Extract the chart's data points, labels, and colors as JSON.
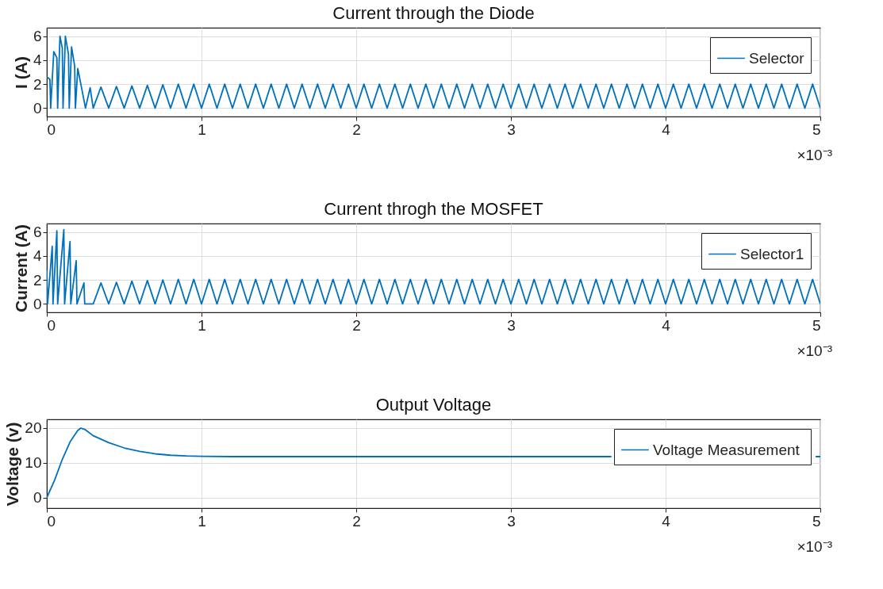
{
  "chart_data": [
    {
      "type": "line",
      "title": "Current through the Diode",
      "ylabel": "I (A)",
      "xlim": [
        0,
        5
      ],
      "xticks": [
        0,
        1,
        2,
        3,
        4,
        5
      ],
      "ylim": [
        -0.7,
        6.7
      ],
      "yticks": [
        0,
        2,
        4,
        6
      ],
      "grid": true,
      "legend": "top right",
      "annotations": [
        "×10⁻³"
      ],
      "series": [
        {
          "name": "Selector",
          "color": "#0072bd",
          "x": [
            0,
            0.02,
            0.025,
            0.045,
            0.065,
            0.07,
            0.085,
            0.1,
            0.105,
            0.12,
            0.14,
            0.145,
            0.16,
            0.18,
            0.185,
            0.2,
            0.22,
            0.25,
            0.28,
            0.3,
            0.35,
            0.4,
            0.45,
            0.5,
            0.55,
            0.6,
            0.65,
            0.7,
            0.75,
            0.8,
            0.85,
            0.9,
            0.95,
            1.0,
            1.05,
            1.1,
            1.15,
            1.2,
            1.25,
            1.3,
            1.35,
            1.4,
            1.45,
            1.5,
            1.55,
            1.6,
            1.65,
            1.7,
            1.75,
            1.8,
            1.85,
            1.9,
            1.95,
            2.0,
            2.05,
            2.1,
            2.15,
            2.2,
            2.25,
            2.3,
            2.35,
            2.4,
            2.45,
            2.5,
            2.55,
            2.6,
            2.65,
            2.7,
            2.75,
            2.8,
            2.85,
            2.9,
            2.95,
            3.0,
            3.05,
            3.1,
            3.15,
            3.2,
            3.25,
            3.3,
            3.35,
            3.4,
            3.45,
            3.5,
            3.55,
            3.6,
            3.65,
            3.7,
            3.75,
            3.8,
            3.85,
            3.9,
            3.95,
            4.0,
            4.05,
            4.1,
            4.15,
            4.2,
            4.25,
            4.3,
            4.35,
            4.4,
            4.45,
            4.5,
            4.55,
            4.6,
            4.65,
            4.7,
            4.75,
            4.8,
            4.85,
            4.9,
            4.95,
            5.0
          ],
          "values": [
            2.6,
            2.4,
            0,
            4.7,
            4.2,
            0,
            6.0,
            5.0,
            0,
            6.0,
            4.5,
            0,
            5.1,
            3.5,
            0,
            3.3,
            2.0,
            0,
            1.7,
            0,
            1.75,
            0,
            1.8,
            0,
            1.85,
            0,
            1.9,
            0,
            1.95,
            0,
            2.0,
            0,
            2.0,
            0,
            2.0,
            0,
            2.0,
            0,
            2.0,
            0,
            2.0,
            0,
            2.0,
            0,
            2.0,
            0,
            2.0,
            0,
            2.0,
            0,
            2.0,
            0,
            2.0,
            0,
            2.0,
            0,
            2.0,
            0,
            2.0,
            0,
            2.0,
            0,
            2.0,
            0,
            2.0,
            0,
            2.0,
            0,
            2.0,
            0,
            2.0,
            0,
            2.0,
            0,
            2.0,
            0,
            2.0,
            0,
            2.0,
            0,
            2.0,
            0,
            2.0,
            0,
            2.0,
            0,
            2.0,
            0,
            2.0,
            0,
            2.0,
            0,
            2.0,
            0,
            2.0,
            0,
            2.0,
            0,
            2.0,
            0,
            2.0,
            0,
            2.0,
            0,
            2.0,
            0,
            2.0,
            0,
            2.0,
            0,
            2.0,
            0,
            2.0,
            0
          ]
        }
      ]
    },
    {
      "type": "line",
      "title": "Current throgh the MOSFET",
      "ylabel": "Current (A)",
      "xlim": [
        0,
        5
      ],
      "xticks": [
        0,
        1,
        2,
        3,
        4,
        5
      ],
      "ylim": [
        -0.7,
        6.7
      ],
      "yticks": [
        0,
        2,
        4,
        6
      ],
      "grid": true,
      "legend": "top right",
      "annotations": [
        "×10⁻³"
      ],
      "series": [
        {
          "name": "Selector1",
          "color": "#0072bd",
          "x": [
            0,
            0.005,
            0.035,
            0.04,
            0.065,
            0.07,
            0.11,
            0.115,
            0.15,
            0.155,
            0.19,
            0.195,
            0.24,
            0.245,
            0.3,
            0.35,
            0.4,
            0.45,
            0.5,
            0.55,
            0.6,
            0.65,
            0.7,
            0.75,
            0.8,
            0.85,
            0.9,
            0.95,
            1.0,
            1.05,
            1.1,
            1.15,
            1.2,
            1.25,
            1.3,
            1.35,
            1.4,
            1.45,
            1.5,
            1.55,
            1.6,
            1.65,
            1.7,
            1.75,
            1.8,
            1.85,
            1.9,
            1.95,
            2.0,
            2.05,
            2.1,
            2.15,
            2.2,
            2.25,
            2.3,
            2.35,
            2.4,
            2.45,
            2.5,
            2.55,
            2.6,
            2.65,
            2.7,
            2.75,
            2.8,
            2.85,
            2.9,
            2.95,
            3.0,
            3.05,
            3.1,
            3.15,
            3.2,
            3.25,
            3.3,
            3.35,
            3.4,
            3.45,
            3.5,
            3.55,
            3.6,
            3.65,
            3.7,
            3.75,
            3.8,
            3.85,
            3.9,
            3.95,
            4.0,
            4.05,
            4.1,
            4.15,
            4.2,
            4.25,
            4.3,
            4.35,
            4.4,
            4.45,
            4.5,
            4.55,
            4.6,
            4.65,
            4.7,
            4.75,
            4.8,
            4.85,
            4.9,
            4.95,
            5.0
          ],
          "values": [
            2.8,
            0,
            4.8,
            0,
            6.1,
            0,
            6.2,
            0,
            5.2,
            0,
            3.6,
            0,
            1.75,
            0,
            0,
            1.75,
            0,
            1.8,
            0,
            1.9,
            0,
            1.95,
            0,
            2.0,
            0,
            2.05,
            0,
            2.05,
            0,
            2.05,
            0,
            2.05,
            0,
            2.05,
            0,
            2.05,
            0,
            2.05,
            0,
            2.05,
            0,
            2.05,
            0,
            2.05,
            0,
            2.05,
            0,
            2.05,
            0,
            2.05,
            0,
            2.05,
            0,
            2.05,
            0,
            2.05,
            0,
            2.05,
            0,
            2.05,
            0,
            2.05,
            0,
            2.05,
            0,
            2.05,
            0,
            2.05,
            0,
            2.05,
            0,
            2.05,
            0,
            2.05,
            0,
            2.05,
            0,
            2.05,
            0,
            2.05,
            0,
            2.05,
            0,
            2.05,
            0,
            2.05,
            0,
            2.05,
            0,
            2.05,
            0,
            2.05,
            0,
            2.05,
            0,
            2.05,
            0,
            2.05,
            0,
            2.05,
            0,
            2.05,
            0,
            2.05,
            0,
            2.05,
            0,
            2.05,
            0
          ]
        }
      ]
    },
    {
      "type": "line",
      "title": "Output Voltage",
      "ylabel": "Voltage (v)",
      "xlim": [
        0,
        5
      ],
      "xticks": [
        0,
        1,
        2,
        3,
        4,
        5
      ],
      "ylim": [
        -3,
        22.5
      ],
      "yticks": [
        0,
        10,
        20
      ],
      "grid": true,
      "legend": "top right",
      "annotations": [
        "×10⁻³"
      ],
      "series": [
        {
          "name": "Voltage  Measurement",
          "color": "#0072bd",
          "x": [
            0,
            0.05,
            0.1,
            0.15,
            0.2,
            0.22,
            0.25,
            0.3,
            0.4,
            0.5,
            0.6,
            0.7,
            0.8,
            0.9,
            1.0,
            1.2,
            1.5,
            2.0,
            2.5,
            3.0,
            3.5,
            3.65,
            4.0,
            4.5,
            4.97,
            5.0
          ],
          "values": [
            0,
            5,
            11,
            16,
            19.3,
            20,
            19.5,
            17.8,
            15.8,
            14.3,
            13.3,
            12.6,
            12.2,
            12.0,
            11.9,
            11.8,
            11.8,
            11.8,
            11.8,
            11.8,
            11.8,
            11.8,
            null,
            null,
            11.8,
            11.8
          ]
        }
      ]
    }
  ]
}
